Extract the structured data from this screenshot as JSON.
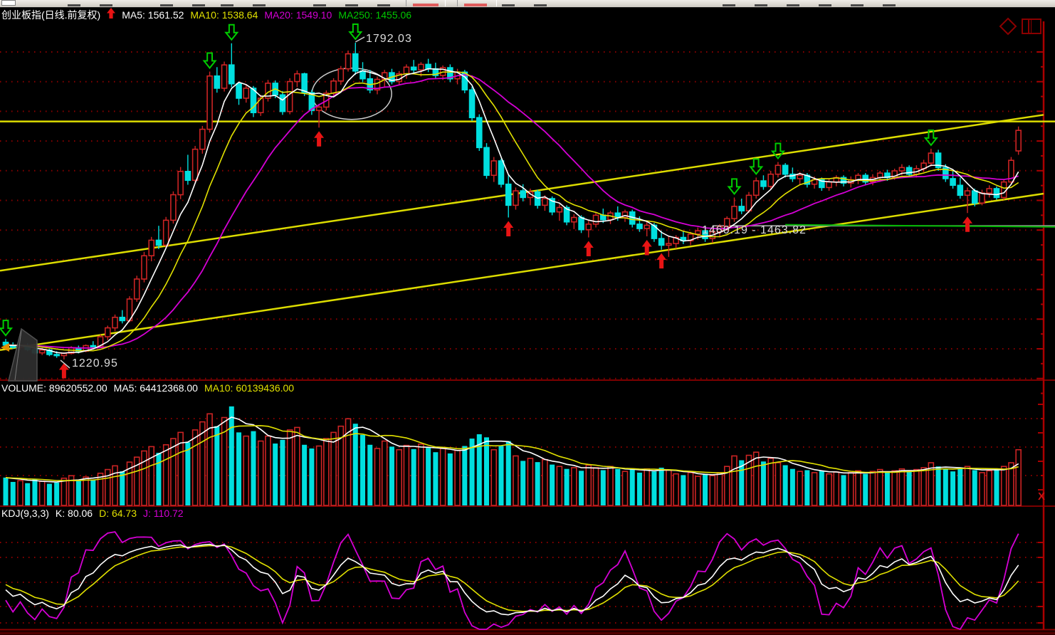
{
  "main": {
    "title": "创业板指(日线.前复权)",
    "mas": [
      {
        "t": "MA5: 1561.52",
        "c": "#ffffff"
      },
      {
        "t": "MA10: 1538.64",
        "c": "#e0e000"
      },
      {
        "t": "MA20: 1549.10",
        "c": "#d400d4"
      },
      {
        "t": "MA250: 1455.06",
        "c": "#00c800"
      }
    ],
    "peak_label": "1792.03",
    "low_label": "1220.95",
    "gap_label": "1460.19 - 1463.82"
  },
  "volume": {
    "items": [
      {
        "t": "VOLUME: 89620552.00",
        "c": "#ffffff"
      },
      {
        "t": "MA5: 64412368.00",
        "c": "#ffffff"
      },
      {
        "t": "MA10: 60139436.00",
        "c": "#e0e000"
      }
    ]
  },
  "kdj": {
    "items": [
      {
        "t": "KDJ(9,3,3)",
        "c": "#ffffff"
      },
      {
        "t": "K: 80.06",
        "c": "#ffffff"
      },
      {
        "t": "D: 64.73",
        "c": "#e0e000"
      },
      {
        "t": "J: 110.72",
        "c": "#d400d4"
      }
    ]
  },
  "colors": {
    "background": "#000000",
    "toolbar": "#d6d2ca",
    "up_candle": "#cc2424",
    "down_candle": "#00dfdf",
    "ma5": "#ffffff",
    "ma10": "#e0e000",
    "ma20": "#d400d4",
    "ma250": "#00b800",
    "grid_dots": "#8b0000",
    "frame": "#7b0000",
    "axis": "#aa0000",
    "buy_arrow": "#e81414",
    "sell_arrow": "#00cc00",
    "trendline_yellow": "#dcdc00",
    "gap_line_gray": "#9a9a9a",
    "annotation_white": "#cccccc",
    "watermark_gray": "#555555"
  },
  "chart_data": {
    "type": "candlestick",
    "symbol": "创业板指",
    "period": "日线",
    "adjust": "前复权",
    "panes": [
      "price+MA",
      "volume+MA",
      "KDJ"
    ],
    "indicators": {
      "ma_periods": [
        5,
        10,
        20,
        250
      ],
      "volume_ma_periods": [
        5,
        10
      ],
      "kdj_params": [
        9,
        3,
        3
      ]
    },
    "last_values": {
      "ma5": 1561.52,
      "ma10": 1538.64,
      "ma20": 1549.1,
      "ma250": 1455.06,
      "volume": 89620552.0,
      "vol_ma5": 64412368.0,
      "vol_ma10": 60139436.0,
      "k": 80.06,
      "d": 64.73,
      "j": 110.72
    },
    "candles": [
      [
        1252,
        1258,
        1244,
        1247
      ],
      [
        1247,
        1252,
        1240,
        1243
      ],
      [
        1243,
        1249,
        1238,
        1246
      ],
      [
        1246,
        1250,
        1236,
        1239
      ],
      [
        1239,
        1244,
        1230,
        1233
      ],
      [
        1233,
        1242,
        1229,
        1238
      ],
      [
        1238,
        1240,
        1227,
        1230
      ],
      [
        1230,
        1236,
        1224,
        1228
      ],
      [
        1228,
        1234,
        1221,
        1232
      ],
      [
        1232,
        1245,
        1230,
        1242
      ],
      [
        1242,
        1246,
        1232,
        1236
      ],
      [
        1236,
        1248,
        1234,
        1246
      ],
      [
        1246,
        1254,
        1240,
        1244
      ],
      [
        1244,
        1266,
        1242,
        1262
      ],
      [
        1262,
        1282,
        1256,
        1278
      ],
      [
        1278,
        1302,
        1272,
        1297
      ],
      [
        1297,
        1310,
        1286,
        1291
      ],
      [
        1291,
        1335,
        1288,
        1330
      ],
      [
        1330,
        1372,
        1325,
        1366
      ],
      [
        1366,
        1415,
        1360,
        1408
      ],
      [
        1408,
        1442,
        1398,
        1436
      ],
      [
        1436,
        1462,
        1420,
        1427
      ],
      [
        1427,
        1478,
        1422,
        1472
      ],
      [
        1472,
        1524,
        1466,
        1518
      ],
      [
        1518,
        1568,
        1510,
        1560
      ],
      [
        1560,
        1590,
        1536,
        1544
      ],
      [
        1544,
        1606,
        1540,
        1600
      ],
      [
        1600,
        1642,
        1592,
        1636
      ],
      [
        1636,
        1740,
        1630,
        1732
      ],
      [
        1732,
        1748,
        1702,
        1710
      ],
      [
        1710,
        1758,
        1704,
        1752
      ],
      [
        1752,
        1791,
        1712,
        1718
      ],
      [
        1718,
        1722,
        1680,
        1692
      ],
      [
        1692,
        1716,
        1684,
        1710
      ],
      [
        1710,
        1714,
        1658,
        1666
      ],
      [
        1666,
        1698,
        1660,
        1692
      ],
      [
        1692,
        1725,
        1686,
        1719
      ],
      [
        1719,
        1724,
        1692,
        1698
      ],
      [
        1698,
        1705,
        1662,
        1668
      ],
      [
        1668,
        1728,
        1663,
        1722
      ],
      [
        1722,
        1742,
        1712,
        1736
      ],
      [
        1736,
        1738,
        1696,
        1702
      ],
      [
        1702,
        1707,
        1662,
        1670
      ],
      [
        1670,
        1682,
        1639,
        1676
      ],
      [
        1676,
        1706,
        1670,
        1701
      ],
      [
        1701,
        1728,
        1694,
        1723
      ],
      [
        1723,
        1750,
        1716,
        1745
      ],
      [
        1745,
        1778,
        1740,
        1772
      ],
      [
        1772,
        1792,
        1734,
        1741
      ],
      [
        1741,
        1757,
        1721,
        1727
      ],
      [
        1727,
        1743,
        1701,
        1707
      ],
      [
        1707,
        1731,
        1699,
        1726
      ],
      [
        1726,
        1743,
        1713,
        1738
      ],
      [
        1738,
        1745,
        1717,
        1722
      ],
      [
        1722,
        1741,
        1715,
        1736
      ],
      [
        1736,
        1753,
        1727,
        1748
      ],
      [
        1748,
        1761,
        1737,
        1743
      ],
      [
        1743,
        1757,
        1731,
        1753
      ],
      [
        1753,
        1763,
        1739,
        1745
      ],
      [
        1745,
        1756,
        1727,
        1733
      ],
      [
        1733,
        1751,
        1725,
        1747
      ],
      [
        1747,
        1753,
        1721,
        1727
      ],
      [
        1727,
        1745,
        1717,
        1739
      ],
      [
        1739,
        1743,
        1701,
        1707
      ],
      [
        1707,
        1713,
        1651,
        1657
      ],
      [
        1657,
        1663,
        1597,
        1603
      ],
      [
        1603,
        1611,
        1547,
        1553
      ],
      [
        1553,
        1586,
        1541,
        1579
      ],
      [
        1579,
        1583,
        1531,
        1537
      ],
      [
        1537,
        1553,
        1477,
        1499
      ],
      [
        1499,
        1531,
        1491,
        1525
      ],
      [
        1525,
        1537,
        1506,
        1513
      ],
      [
        1513,
        1529,
        1499,
        1523
      ],
      [
        1523,
        1527,
        1493,
        1499
      ],
      [
        1499,
        1517,
        1489,
        1511
      ],
      [
        1511,
        1515,
        1481,
        1487
      ],
      [
        1487,
        1501,
        1471,
        1495
      ],
      [
        1495,
        1499,
        1463,
        1469
      ],
      [
        1469,
        1483,
        1456,
        1477
      ],
      [
        1477,
        1481,
        1449,
        1455
      ],
      [
        1455,
        1471,
        1441,
        1465
      ],
      [
        1465,
        1487,
        1459,
        1481
      ],
      [
        1481,
        1493,
        1467,
        1473
      ],
      [
        1473,
        1489,
        1465,
        1485
      ],
      [
        1485,
        1497,
        1471,
        1477
      ],
      [
        1477,
        1491,
        1469,
        1487
      ],
      [
        1487,
        1491,
        1459,
        1465
      ],
      [
        1465,
        1479,
        1451,
        1457
      ],
      [
        1457,
        1469,
        1443,
        1463
      ],
      [
        1463,
        1467,
        1433,
        1439
      ],
      [
        1439,
        1453,
        1419,
        1427
      ],
      [
        1427,
        1443,
        1406,
        1430
      ],
      [
        1430,
        1445,
        1421,
        1441
      ],
      [
        1441,
        1453,
        1429,
        1435
      ],
      [
        1435,
        1451,
        1427,
        1447
      ],
      [
        1447,
        1459,
        1437,
        1453
      ],
      [
        1453,
        1457,
        1433,
        1439
      ],
      [
        1439,
        1455,
        1431,
        1451
      ],
      [
        1451,
        1465,
        1441,
        1461
      ],
      [
        1461,
        1479,
        1453,
        1475
      ],
      [
        1475,
        1513,
        1469,
        1497
      ],
      [
        1497,
        1511,
        1483,
        1489
      ],
      [
        1489,
        1523,
        1485,
        1517
      ],
      [
        1517,
        1549,
        1511,
        1543
      ],
      [
        1543,
        1553,
        1527,
        1533
      ],
      [
        1533,
        1561,
        1529,
        1555
      ],
      [
        1555,
        1577,
        1549,
        1571
      ],
      [
        1571,
        1575,
        1549,
        1555
      ],
      [
        1555,
        1567,
        1541,
        1547
      ],
      [
        1547,
        1559,
        1535,
        1553
      ],
      [
        1553,
        1557,
        1531,
        1537
      ],
      [
        1537,
        1551,
        1529,
        1545
      ],
      [
        1545,
        1549,
        1525,
        1531
      ],
      [
        1531,
        1547,
        1525,
        1541
      ],
      [
        1541,
        1553,
        1533,
        1549
      ],
      [
        1549,
        1553,
        1533,
        1539
      ],
      [
        1539,
        1551,
        1531,
        1545
      ],
      [
        1545,
        1557,
        1537,
        1553
      ],
      [
        1553,
        1557,
        1535,
        1541
      ],
      [
        1541,
        1555,
        1535,
        1549
      ],
      [
        1549,
        1561,
        1541,
        1557
      ],
      [
        1557,
        1563,
        1543,
        1549
      ],
      [
        1549,
        1565,
        1545,
        1561
      ],
      [
        1561,
        1573,
        1553,
        1567
      ],
      [
        1567,
        1571,
        1549,
        1555
      ],
      [
        1555,
        1571,
        1549,
        1565
      ],
      [
        1565,
        1581,
        1559,
        1575
      ],
      [
        1575,
        1601,
        1569,
        1593
      ],
      [
        1593,
        1599,
        1561,
        1567
      ],
      [
        1567,
        1573,
        1541,
        1547
      ],
      [
        1547,
        1561,
        1529,
        1535
      ],
      [
        1535,
        1549,
        1511,
        1517
      ],
      [
        1517,
        1531,
        1485,
        1525
      ],
      [
        1525,
        1529,
        1497,
        1503
      ],
      [
        1503,
        1527,
        1499,
        1521
      ],
      [
        1521,
        1535,
        1513,
        1529
      ],
      [
        1529,
        1533,
        1509,
        1513
      ],
      [
        1513,
        1546,
        1509,
        1541
      ],
      [
        1541,
        1586,
        1537,
        1580
      ],
      [
        1597,
        1641,
        1590,
        1634
      ]
    ],
    "volumes_millions": [
      45,
      38,
      40,
      36,
      42,
      39,
      35,
      37,
      44,
      48,
      42,
      46,
      41,
      52,
      58,
      64,
      55,
      70,
      78,
      88,
      95,
      85,
      98,
      108,
      118,
      102,
      122,
      135,
      148,
      128,
      142,
      160,
      118,
      112,
      120,
      104,
      112,
      100,
      106,
      122,
      126,
      98,
      92,
      96,
      108,
      118,
      128,
      140,
      132,
      114,
      98,
      92,
      104,
      95,
      90,
      97,
      91,
      99,
      93,
      86,
      92,
      84,
      89,
      96,
      108,
      115,
      110,
      90,
      96,
      104,
      80,
      72,
      76,
      70,
      74,
      66,
      63,
      59,
      61,
      56,
      65,
      61,
      57,
      63,
      59,
      55,
      58,
      53,
      59,
      55,
      61,
      57,
      51,
      49,
      53,
      47,
      51,
      48,
      53,
      63,
      80,
      73,
      81,
      86,
      71,
      76,
      69,
      65,
      59,
      55,
      57,
      53,
      56,
      51,
      54,
      49,
      53,
      56,
      51,
      55,
      58,
      53,
      56,
      59,
      55,
      58,
      61,
      69,
      63,
      59,
      55,
      59,
      63,
      57,
      53,
      56,
      59,
      63,
      69,
      90
    ],
    "annotations": {
      "peak_price": 1792.03,
      "peak_bar": 48,
      "low_price": 1220.95,
      "low_bar": 8,
      "gap_line": {
        "price": 1462,
        "from_bar": 97,
        "label": "1460.19 - 1463.82"
      },
      "ma250_segment": {
        "from_bar": 107,
        "from_price": 1464,
        "to_price": 1460
      },
      "horizontal_line_price": 1650,
      "channel_upper": {
        "from_price": 1381,
        "to_price": 1662
      },
      "channel_lower": {
        "from_price": 1238,
        "to_price": 1520
      },
      "ellipse": {
        "bar": 47.5,
        "price": 1700
      },
      "buy_arrow_bars": [
        8,
        43,
        69,
        80,
        88,
        90,
        132
      ],
      "sell_arrow_bars": [
        0,
        28,
        31,
        48,
        100,
        103,
        106,
        127
      ]
    },
    "kdj_axis_levels": [
      0,
      20,
      50,
      80,
      100
    ],
    "price_axis_labels_visible": false
  }
}
